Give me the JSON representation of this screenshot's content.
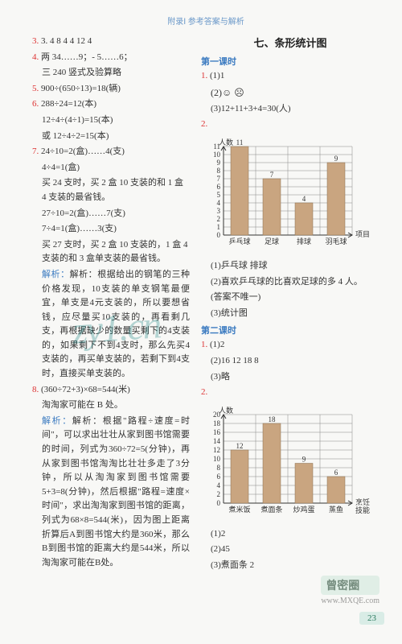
{
  "header": "附录Ⅰ  参考答案与解析",
  "pageNumber": "23",
  "left": {
    "l3": "3. 4  8  4  4  12  4",
    "l4a": "4. 两  34……9；- 5……6；",
    "l4b": "三  240  竖式及验算略",
    "l5": "5. 900÷(650÷13)=18(辆)",
    "l6a": "6. 288÷24=12(本)",
    "l6b": "12÷4÷(4÷1)=15(本)",
    "l6c": "或 12÷4÷2=15(本)",
    "l7a": "7. 24÷10=2(盒)……4(支)",
    "l7b": "4÷4=1(盒)",
    "l7c": "买 24 支时，买 2 盒 10 支装的和 1 盒 4 支装的最省钱。",
    "l7d": "27÷10=2(盒)……7(支)",
    "l7e": "7÷4=1(盒)……3(支)",
    "l7f": "买 27 支时，买 2 盒 10 支装的，1 盒 4 支装的和 3 盒单支装的最省钱。",
    "l7exp": "解析：根据给出的钢笔的三种价格发现，10支装的单支钢笔最便宜，单支是4元支装的，所以要想省钱，应尽量买10支装的，再看剩几支，再根据缺少的数量买剩下的4支装的，如果剩下不到4支时，那么先买4支装的，再买单支装的，若剩下到4支时，直接买单支装的。",
    "l8a": "8. (360÷72+3)×68=544(米)",
    "l8b": "淘淘家可能在 B 处。",
    "l8exp": "解析：根据\"路程÷速度=时间\"，可以求出壮壮从家到图书馆需要的时间，列式为360÷72=5(分钟)，再从家到图书馆淘淘比壮壮多走了3分钟，所以从淘淘家到图书馆需要5+3=8(分钟)，然后根据\"路程=速度×时间\"，求出淘淘家到图书馆的距离，列式为68×8=544(米)，因为图上距离折算后A到图书馆大约是360米，那么B到图书馆的距离大约是544米，所以淘淘家可能在B处。"
  },
  "right": {
    "title": "七、条形统计图",
    "lesson1": "第一课时",
    "l1_1": "1. (1)1",
    "l1_2": "(2)☺  ☹",
    "l1_3": "(3)12+11+3+4=30(人)",
    "l2_label": "2.",
    "chart1": {
      "ylabel": "人数",
      "xlabel": "项目",
      "categories": [
        "乒乓球",
        "足球",
        "排球",
        "羽毛球"
      ],
      "values": [
        11,
        7,
        4,
        9
      ],
      "yticks": [
        0,
        1,
        2,
        3,
        4,
        5,
        6,
        7,
        8,
        9,
        10,
        11
      ],
      "barColor": "#c9a580",
      "gridColor": "#888888",
      "textColor": "#333333",
      "bgColor": "#f8f8f6",
      "barWidthPx": 22,
      "cellHeightPx": 10,
      "cellWidthPx": 40,
      "fontSize": 9
    },
    "c1_a": "(1)乒乓球  排球",
    "c1_b": "(2)喜欢乒乓球的比喜欢足球的多 4 人。",
    "c1_c": "(答案不唯一)",
    "c1_d": "(3)统计图",
    "lesson2": "第二课时",
    "l2_1a": "1. (1)2",
    "l2_1b": "(2)16  12  18  8",
    "l2_1c": "(3)略",
    "l2_2": "2.",
    "chart2": {
      "ylabel": "人数",
      "xlabel": "烹饪\n技能",
      "categories": [
        "煮米饭",
        "煮面条",
        "炒鸡蛋",
        "蒸鱼"
      ],
      "values": [
        12,
        18,
        9,
        6
      ],
      "yticks": [
        0,
        2,
        4,
        6,
        8,
        10,
        12,
        14,
        16,
        18,
        20
      ],
      "barColor": "#c9a580",
      "gridColor": "#888888",
      "textColor": "#333333",
      "bgColor": "#f8f8f6",
      "barWidthPx": 22,
      "cellHeightPx": 11,
      "cellWidthPx": 40,
      "fontSize": 9
    },
    "c2_a": "(1)2",
    "c2_b": "(2)45",
    "c2_c": "(3)煮面条  2"
  },
  "watermarks": {
    "wm1": "zy1.cn",
    "wm2_text": "曾密圈",
    "wm2_url": "www.MXQE.com"
  }
}
